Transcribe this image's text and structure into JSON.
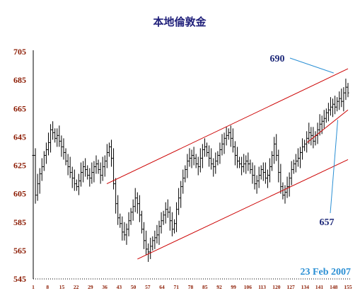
{
  "chart_data": {
    "type": "ohlc",
    "title": "本地倫敦金",
    "date_label": "23 Feb 2007",
    "colors": {
      "bars": "#000000",
      "channel": "#cc0000",
      "callout": "#2a8fd4",
      "title": "#1f1f7a",
      "ticks": "#8b1a00",
      "date": "#2a8fd4"
    },
    "ylim": [
      545,
      705
    ],
    "yticks": [
      545,
      565,
      585,
      605,
      625,
      645,
      665,
      685,
      705
    ],
    "xlim": [
      1,
      155
    ],
    "xticks": [
      1,
      8,
      15,
      22,
      29,
      36,
      43,
      50,
      57,
      64,
      71,
      78,
      85,
      92,
      99,
      106,
      113,
      120,
      127,
      134,
      141,
      148,
      155
    ],
    "close": [
      632,
      604,
      612,
      619,
      624,
      632,
      636,
      641,
      650,
      648,
      644,
      646,
      642,
      638,
      634,
      628,
      624,
      620,
      616,
      612,
      610,
      614,
      620,
      624,
      622,
      618,
      616,
      620,
      624,
      626,
      622,
      618,
      624,
      628,
      634,
      638,
      630,
      612,
      598,
      588,
      584,
      578,
      576,
      580,
      586,
      592,
      596,
      602,
      598,
      590,
      580,
      572,
      566,
      564,
      568,
      572,
      574,
      576,
      582,
      586,
      590,
      594,
      592,
      586,
      580,
      584,
      594,
      602,
      610,
      616,
      622,
      628,
      630,
      632,
      630,
      626,
      624,
      630,
      636,
      638,
      634,
      630,
      626,
      624,
      628,
      632,
      636,
      640,
      644,
      646,
      648,
      644,
      638,
      632,
      628,
      626,
      624,
      626,
      628,
      626,
      622,
      618,
      612,
      614,
      618,
      622,
      620,
      616,
      618,
      624,
      632,
      640,
      632,
      620,
      610,
      604,
      606,
      610,
      616,
      622,
      626,
      628,
      630,
      634,
      638,
      640,
      644,
      648,
      646,
      642,
      646,
      650,
      654,
      656,
      658,
      662,
      664,
      666,
      668,
      666,
      670,
      672,
      670,
      676,
      680,
      676
    ],
    "annotations": [
      {
        "label": "690",
        "value": 690
      },
      {
        "label": "657",
        "value": 657
      }
    ]
  }
}
